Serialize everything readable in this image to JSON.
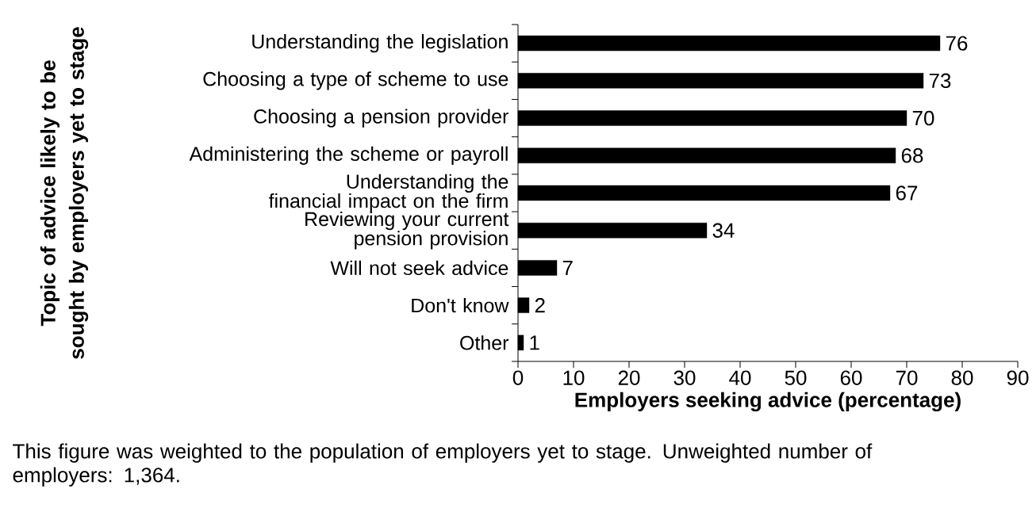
{
  "chart_data": {
    "type": "bar",
    "orientation": "horizontal",
    "ylabel": "Topic of advice  likely to be sought by employers yet to stage",
    "xlabel": "Employers seeking advice (percentage)",
    "categories": [
      "Understanding the legislation",
      "Choosing a type of scheme to use",
      "Choosing a pension provider",
      "Administering the scheme or payroll",
      "Understanding the financial impact on the firm",
      "Reviewing your current pension provision",
      "Will not seek advice",
      "Don't know",
      "Other"
    ],
    "values": [
      76,
      73,
      70,
      68,
      67,
      34,
      7,
      2,
      1
    ],
    "color": "#000000",
    "xlim": [
      0,
      90
    ],
    "xticks": [
      0,
      10,
      20,
      30,
      40,
      50,
      60,
      70,
      80,
      90
    ],
    "data_labels": true,
    "grid": false,
    "annotations": [
      "This figure was weighted to the population of employers yet to stage. Unweighted number of employers: 1,364."
    ]
  }
}
